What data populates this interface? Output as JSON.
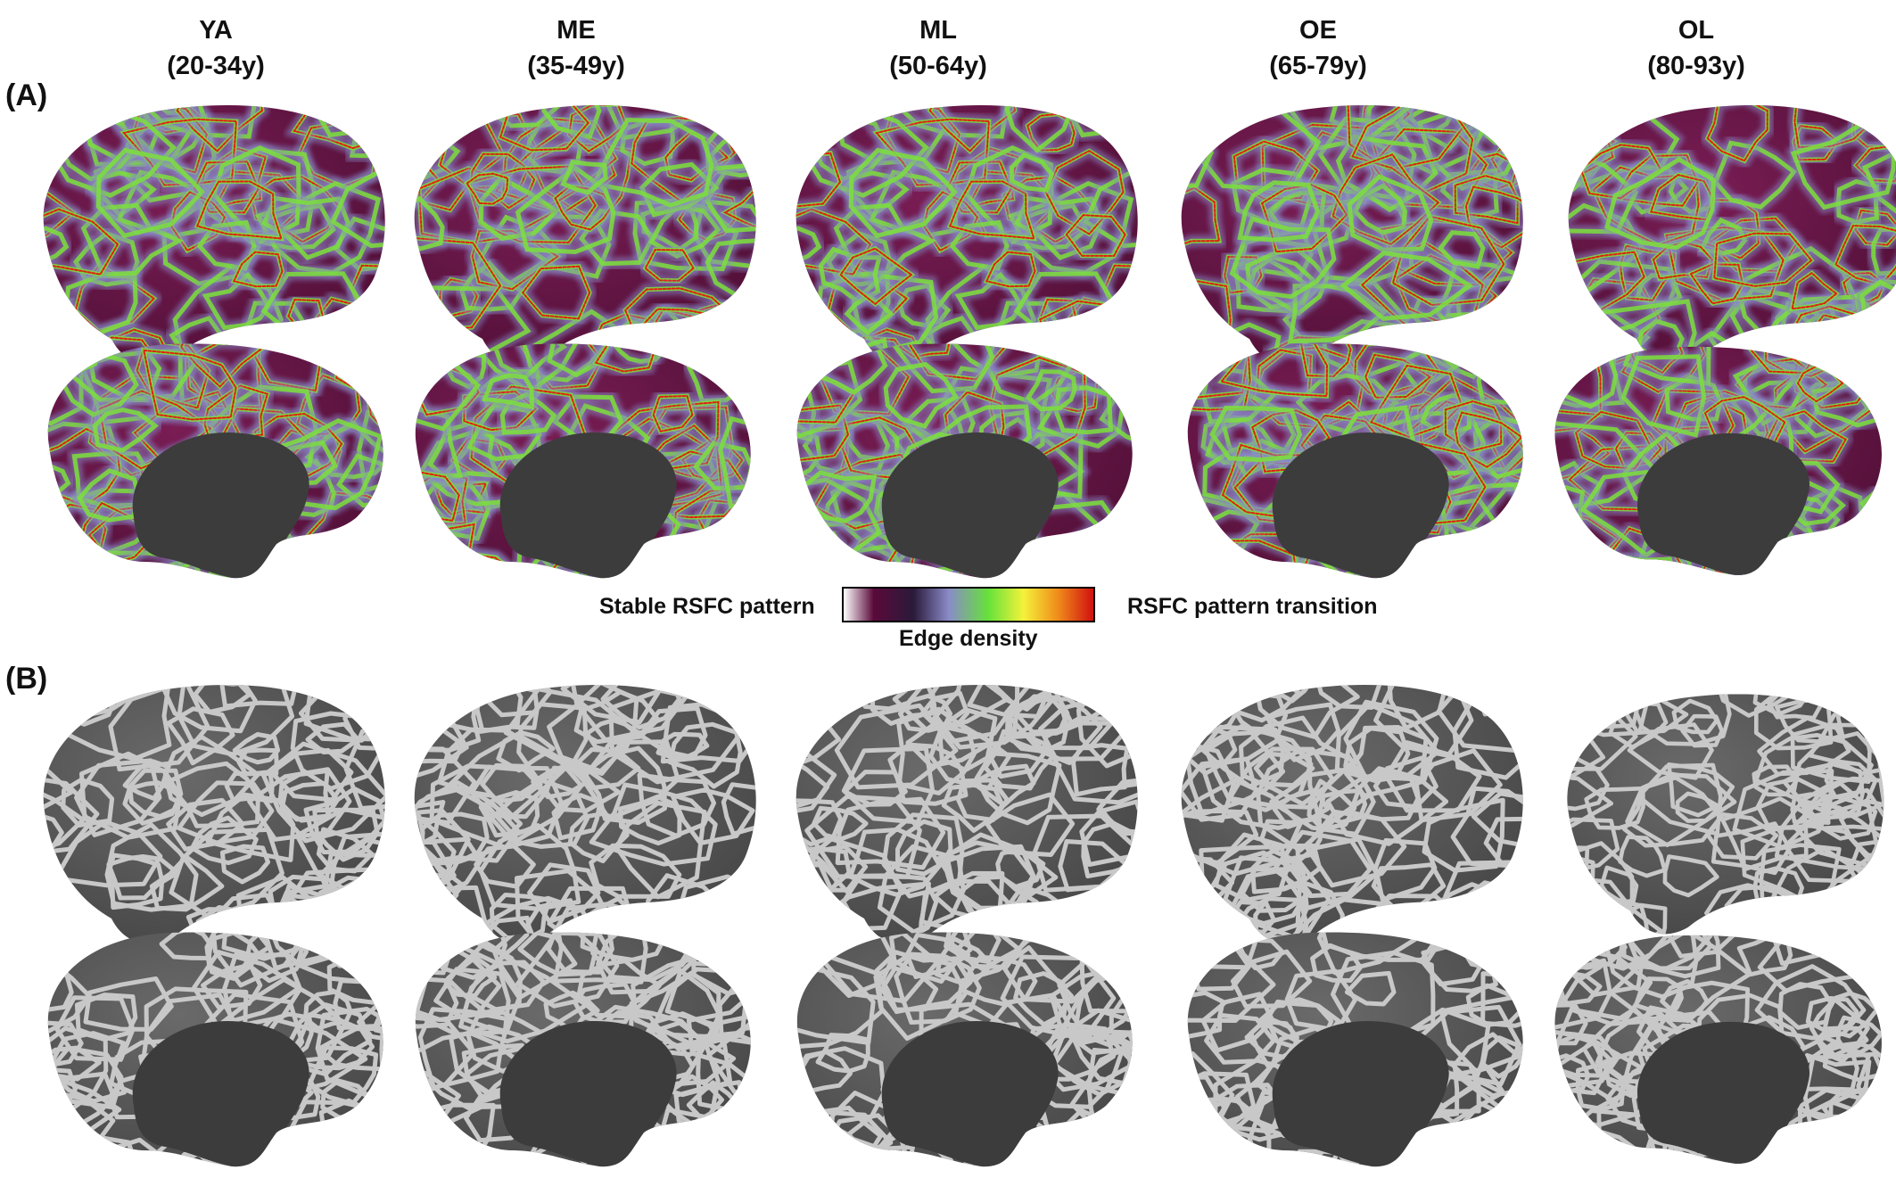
{
  "columns": [
    {
      "group": "YA",
      "age": "(20-34y)"
    },
    {
      "group": "ME",
      "age": "(35-49y)"
    },
    {
      "group": "ML",
      "age": "(50-64y)"
    },
    {
      "group": "OE",
      "age": "(65-79y)"
    },
    {
      "group": "OL",
      "age": "(80-93y)"
    }
  ],
  "panels": {
    "a_label": "(A)",
    "b_label": "(B)"
  },
  "legend": {
    "left_label": "Stable RSFC pattern",
    "right_label": "RSFC pattern transition",
    "bar_label": "Edge density",
    "colormap": [
      "#ffffff",
      "#5a0a3a",
      "#2a1a3a",
      "#8a8ac8",
      "#66e23a",
      "#f4f23a",
      "#f08a1a",
      "#d01010"
    ]
  },
  "colors": {
    "heat_background": "#6b1548",
    "heat_mid": "#8a8ac8",
    "heat_green": "#7be03a",
    "heat_red": "#e02010",
    "gray_surface": "#5a5a5a",
    "gray_border": "#c8c8c8",
    "medial_wall": "#3c3c3c"
  },
  "rows": [
    "A-lateral",
    "A-medial",
    "B-lateral",
    "B-medial"
  ]
}
